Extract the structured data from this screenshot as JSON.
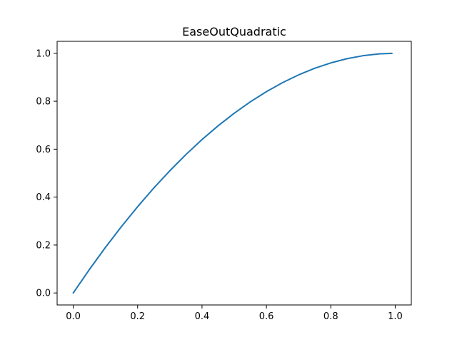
{
  "chart_data": {
    "type": "line",
    "title": "EaseOutQuadratic",
    "xlabel": "",
    "ylabel": "",
    "xlim": [
      -0.05,
      1.05
    ],
    "ylim": [
      -0.05,
      1.05
    ],
    "x_ticks": [
      "0.0",
      "0.2",
      "0.4",
      "0.6",
      "0.8",
      "1.0"
    ],
    "y_ticks": [
      "0.0",
      "0.2",
      "0.4",
      "0.6",
      "0.8",
      "1.0"
    ],
    "grid": false,
    "legend": "none",
    "series": [
      {
        "color": "#1f77b4",
        "x": [
          0.0,
          0.05,
          0.1,
          0.15,
          0.2,
          0.25,
          0.3,
          0.35,
          0.4,
          0.45,
          0.5,
          0.55,
          0.6,
          0.65,
          0.7,
          0.75,
          0.8,
          0.85,
          0.9,
          0.95,
          0.99
        ],
        "y": [
          0.0,
          0.0975,
          0.19,
          0.2775,
          0.36,
          0.4375,
          0.51,
          0.5775,
          0.64,
          0.6975,
          0.75,
          0.7975,
          0.84,
          0.8775,
          0.91,
          0.9375,
          0.96,
          0.9775,
          0.99,
          0.9975,
          0.9999
        ]
      }
    ]
  }
}
